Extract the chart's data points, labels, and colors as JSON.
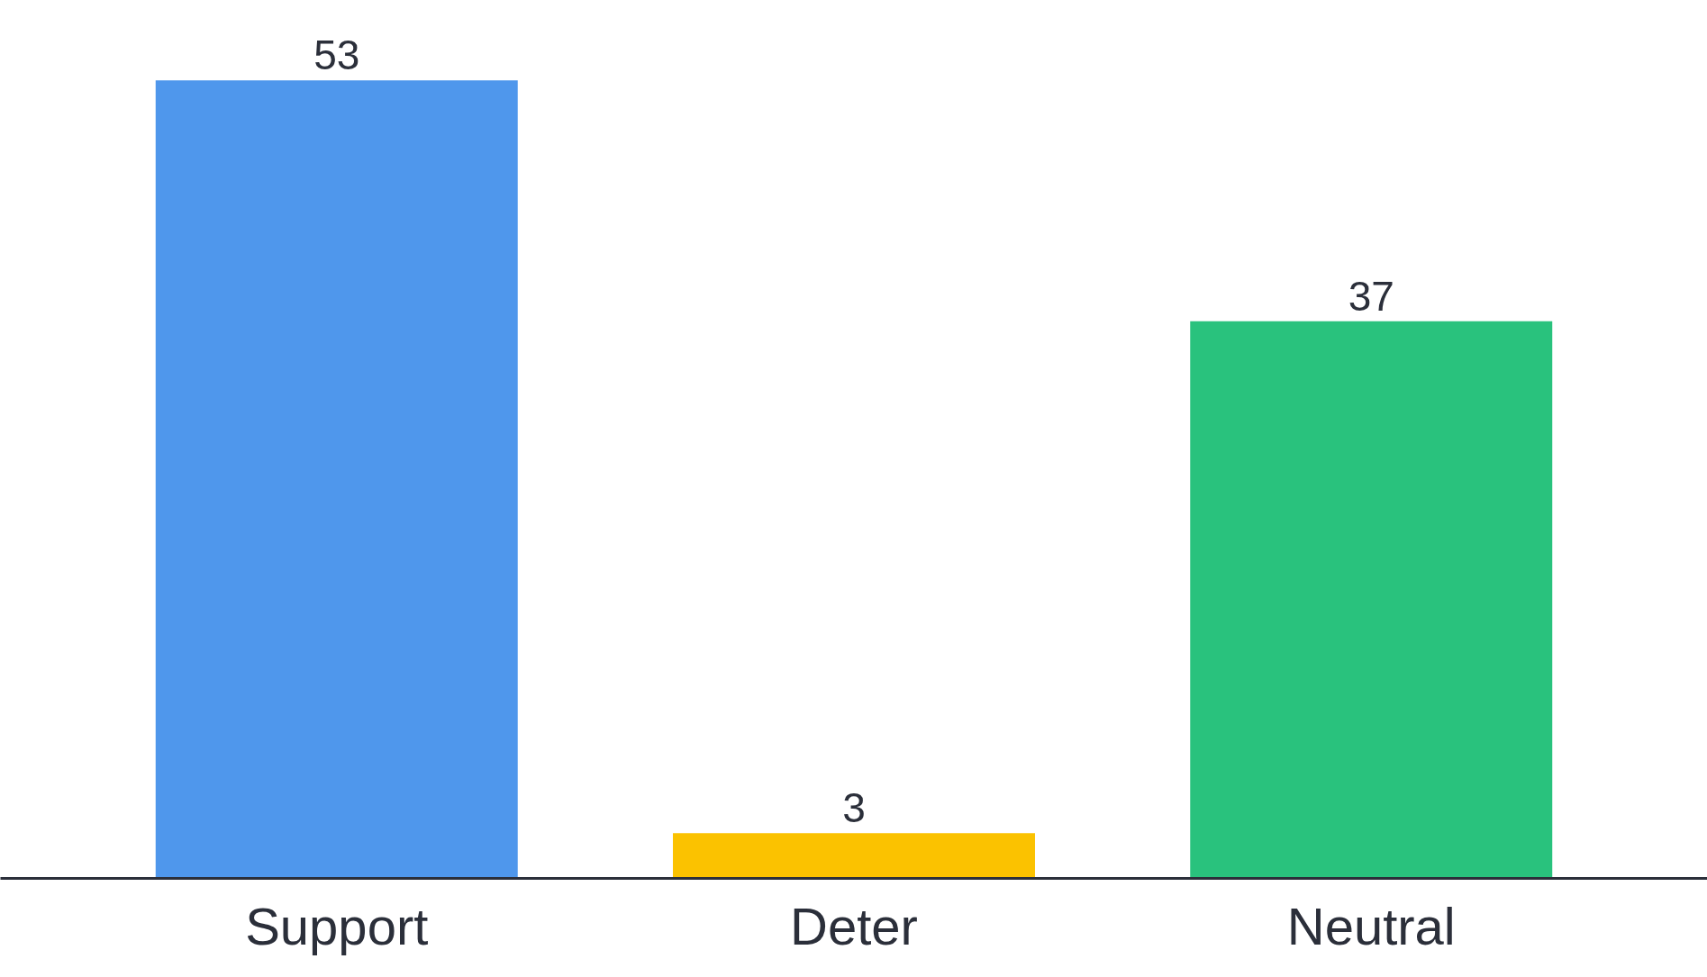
{
  "chart_data": {
    "type": "bar",
    "categories": [
      "Support",
      "Deter",
      "Neutral"
    ],
    "values": [
      53,
      3,
      37
    ],
    "colors": [
      "#4f97ec",
      "#fbc200",
      "#29c27d"
    ],
    "data_labels": true
  }
}
